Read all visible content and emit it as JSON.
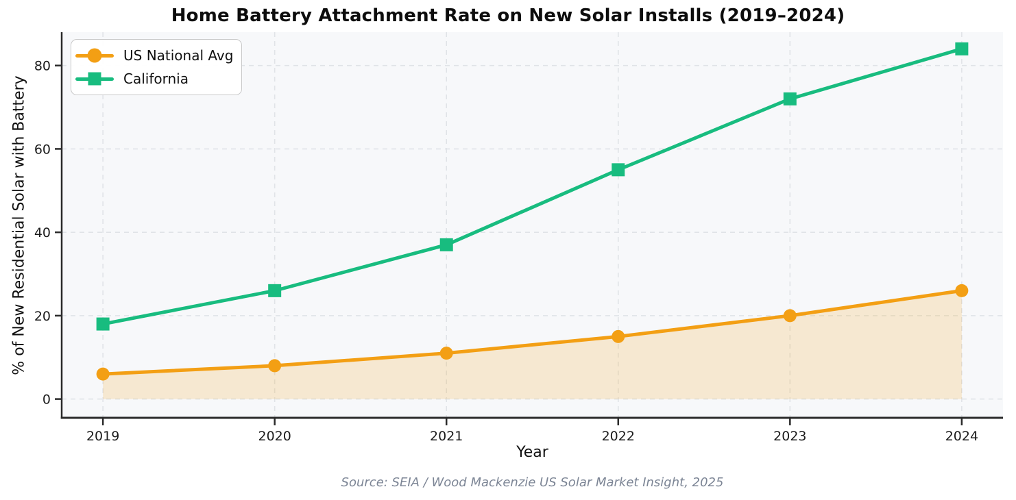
{
  "chart_data": {
    "type": "line",
    "title": "Home Battery Attachment Rate on New Solar Installs (2019–2024)",
    "xlabel": "Year",
    "ylabel": "% of New Residential Solar with Battery",
    "source": "Source: SEIA / Wood Mackenzie US Solar Market Insight, 2025",
    "categories": [
      2019,
      2020,
      2021,
      2022,
      2023,
      2024
    ],
    "series": [
      {
        "name": "US National Avg",
        "values": [
          6,
          8,
          11,
          15,
          20,
          26
        ],
        "color": "#F39F14",
        "marker": "circle",
        "area_fill": true,
        "fill_color": "rgba(243,159,20,0.18)"
      },
      {
        "name": "California",
        "values": [
          18,
          26,
          37,
          55,
          72,
          84
        ],
        "color": "#18BC7F",
        "marker": "square",
        "area_fill": false
      }
    ],
    "yticks": [
      0,
      20,
      40,
      60,
      80
    ],
    "ylim": [
      -4.5,
      88
    ],
    "xlim": [
      2018.76,
      2024.24
    ],
    "grid": true,
    "grid_style": "dashed",
    "legend_position": "upper left",
    "style": {
      "plot_bg": "#F7F8FA",
      "grid_color": "#E0E3E7",
      "spine_color": "#2A2A2A",
      "tick_label_color": "#1B1B1B",
      "line_width": 5
    }
  }
}
